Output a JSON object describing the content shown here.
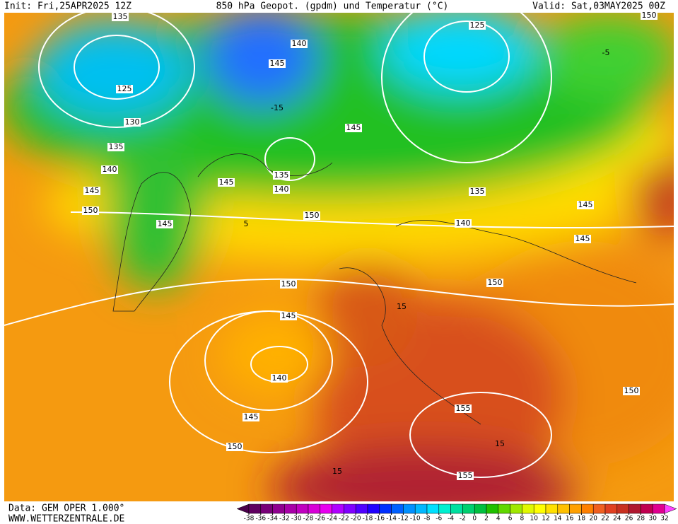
{
  "header": {
    "init": "Init: Fri,25APR2025 12Z",
    "title": "850 hPa Geopot. (gpdm) und Temperatur (°C)",
    "valid": "Valid: Sat,03MAY2025 00Z"
  },
  "footer": {
    "data": "Data: GEM OPER 1.000°",
    "site": "WWW.WETTERZENTRALE.DE"
  },
  "contour_labels": [
    "135",
    "125",
    "130",
    "135",
    "140",
    "145",
    "150",
    "145",
    "145",
    "140",
    "145",
    "135",
    "140",
    "145",
    "125",
    "135",
    "140",
    "150",
    "150",
    "145",
    "140",
    "145",
    "150",
    "155",
    "155",
    "150",
    "145",
    "145",
    "150",
    "150",
    "-15",
    "5",
    "15",
    "15",
    "15",
    "-5"
  ],
  "colorbar": {
    "ticks": [
      -38,
      -36,
      -34,
      -32,
      -30,
      -28,
      -26,
      -24,
      -22,
      -20,
      -18,
      -16,
      -14,
      -12,
      -10,
      -8,
      -6,
      -4,
      -2,
      0,
      2,
      4,
      6,
      8,
      10,
      12,
      14,
      16,
      18,
      20,
      22,
      24,
      26,
      28,
      30,
      32
    ],
    "colors": [
      "#4a004a",
      "#600060",
      "#780078",
      "#900090",
      "#a800a8",
      "#c000c0",
      "#d800d8",
      "#e800f0",
      "#b000ff",
      "#8000ff",
      "#5000ff",
      "#2000ff",
      "#0030ff",
      "#0060ff",
      "#0090ff",
      "#00b8ff",
      "#00e0ff",
      "#00f0d0",
      "#00e0a0",
      "#00d070",
      "#00c040",
      "#20c000",
      "#60d800",
      "#a0e800",
      "#e0f800",
      "#ffff00",
      "#ffe000",
      "#ffc000",
      "#ffa000",
      "#ff8000",
      "#f06020",
      "#e04020",
      "#c83020",
      "#b01830",
      "#c00050",
      "#e00090",
      "#ff40ff"
    ]
  }
}
